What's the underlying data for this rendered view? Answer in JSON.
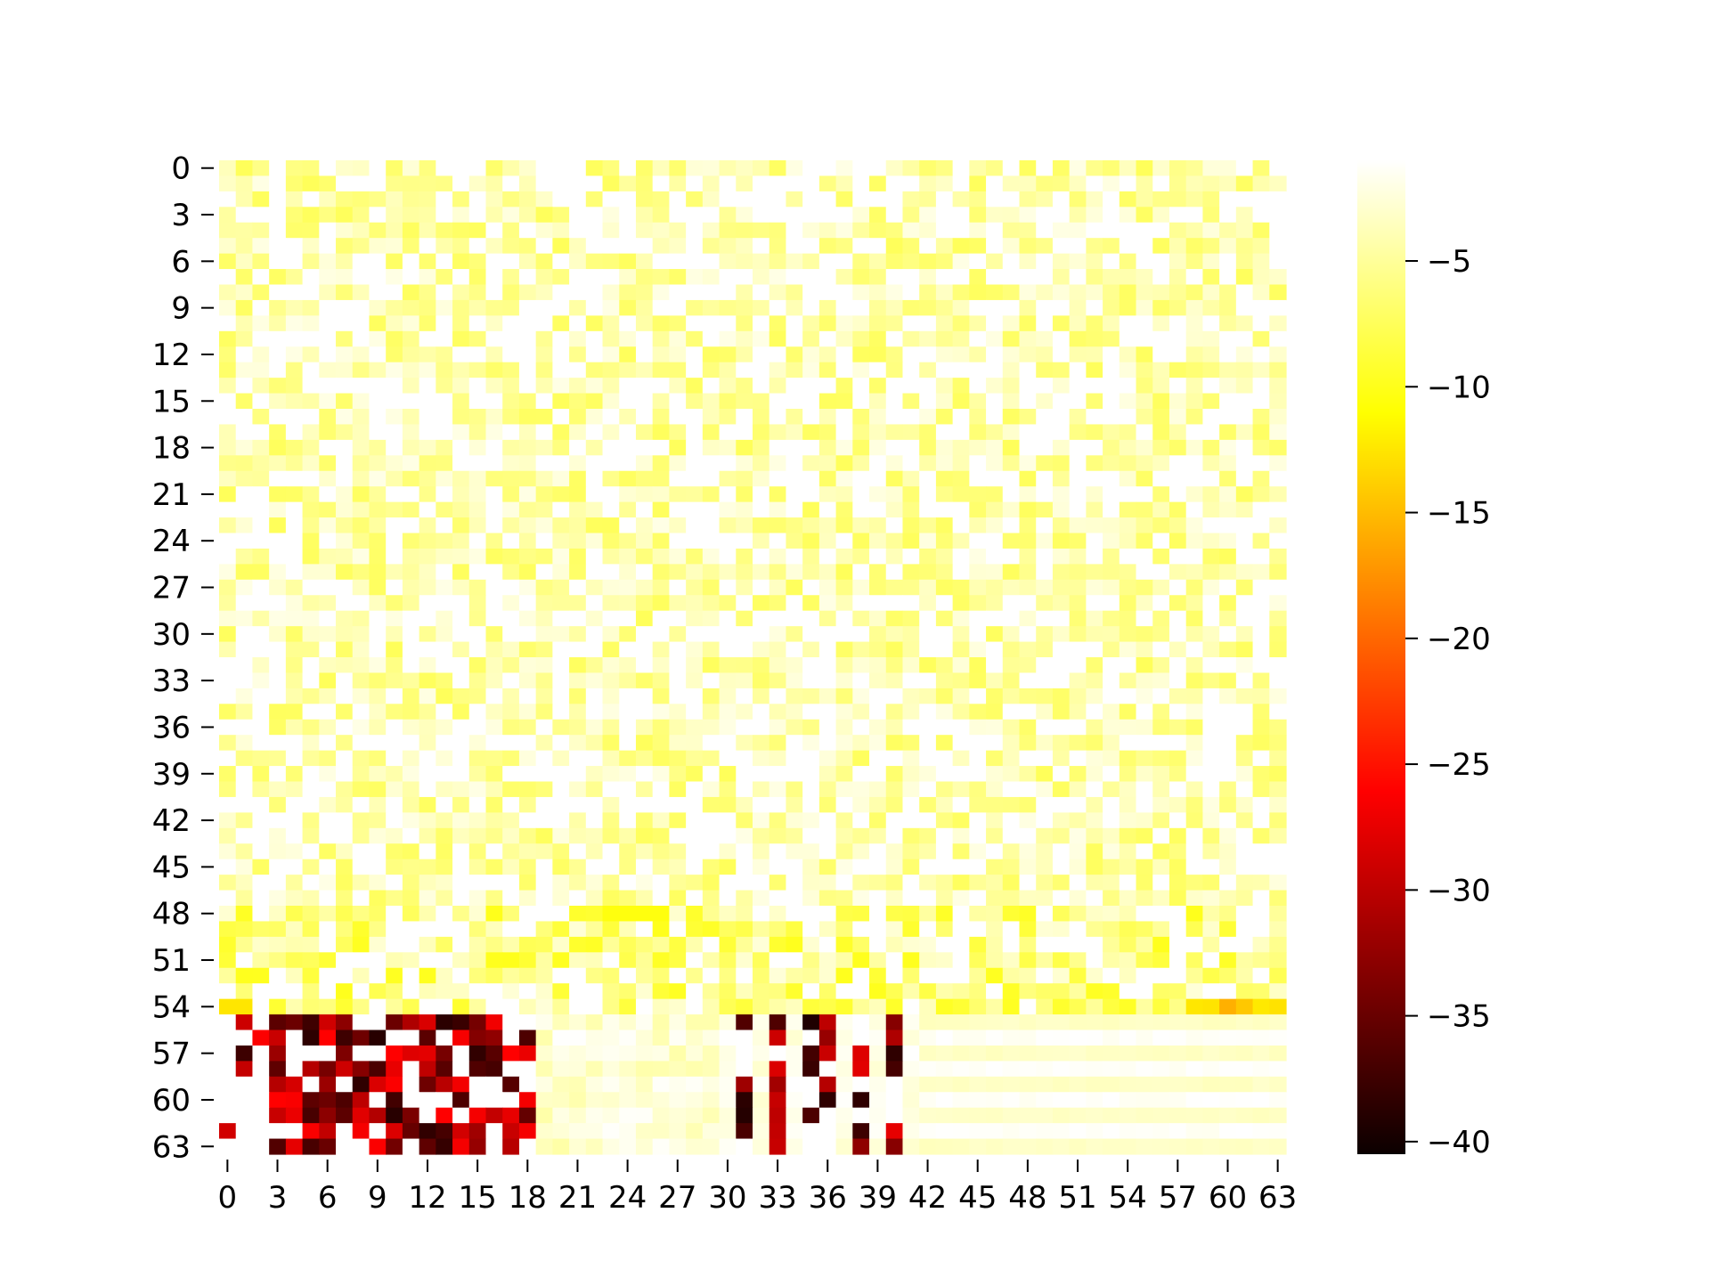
{
  "chart_data": {
    "type": "heatmap",
    "title": "",
    "xlabel": "",
    "ylabel": "",
    "rows": 64,
    "cols": 64,
    "x_tick_labels": [
      "0",
      "3",
      "6",
      "9",
      "12",
      "15",
      "18",
      "21",
      "24",
      "27",
      "30",
      "33",
      "36",
      "39",
      "42",
      "45",
      "48",
      "51",
      "54",
      "57",
      "60",
      "63"
    ],
    "y_tick_labels": [
      "0",
      "3",
      "6",
      "9",
      "12",
      "15",
      "18",
      "21",
      "24",
      "27",
      "30",
      "33",
      "36",
      "39",
      "42",
      "45",
      "48",
      "51",
      "54",
      "57",
      "60",
      "63"
    ],
    "colorbar": {
      "colormap": "hot",
      "vmin": -40.5,
      "vmax": -1.0,
      "tick_values": [
        -5,
        -10,
        -15,
        -20,
        -25,
        -30,
        -35,
        -40
      ],
      "tick_labels": [
        "−5",
        "−10",
        "−15",
        "−20",
        "−25",
        "−30",
        "−35",
        "−40"
      ]
    },
    "value_summary": {
      "rows_0_to_47": "mostly between -1 and -8 (white to pale yellow), patchy pattern",
      "rows_48_to_54": "between -2 and -15 (yellow to orange), strongest values at row 54 around columns 58-63 and row 48 columns 23-26",
      "rows_55_to_64_cols_0_to_18": "dark red to black, between -25 and -40",
      "rows_55_to_64_cols_19_to_29": "near white, -1 to -4",
      "rows_55_to_64_cols_30_to_41": "mix of white and dark red/black columns, -1 to -40",
      "rows_55_to_64_cols_42_to_63": "horizontal bands of white and pale yellow, -1 to -4"
    }
  }
}
